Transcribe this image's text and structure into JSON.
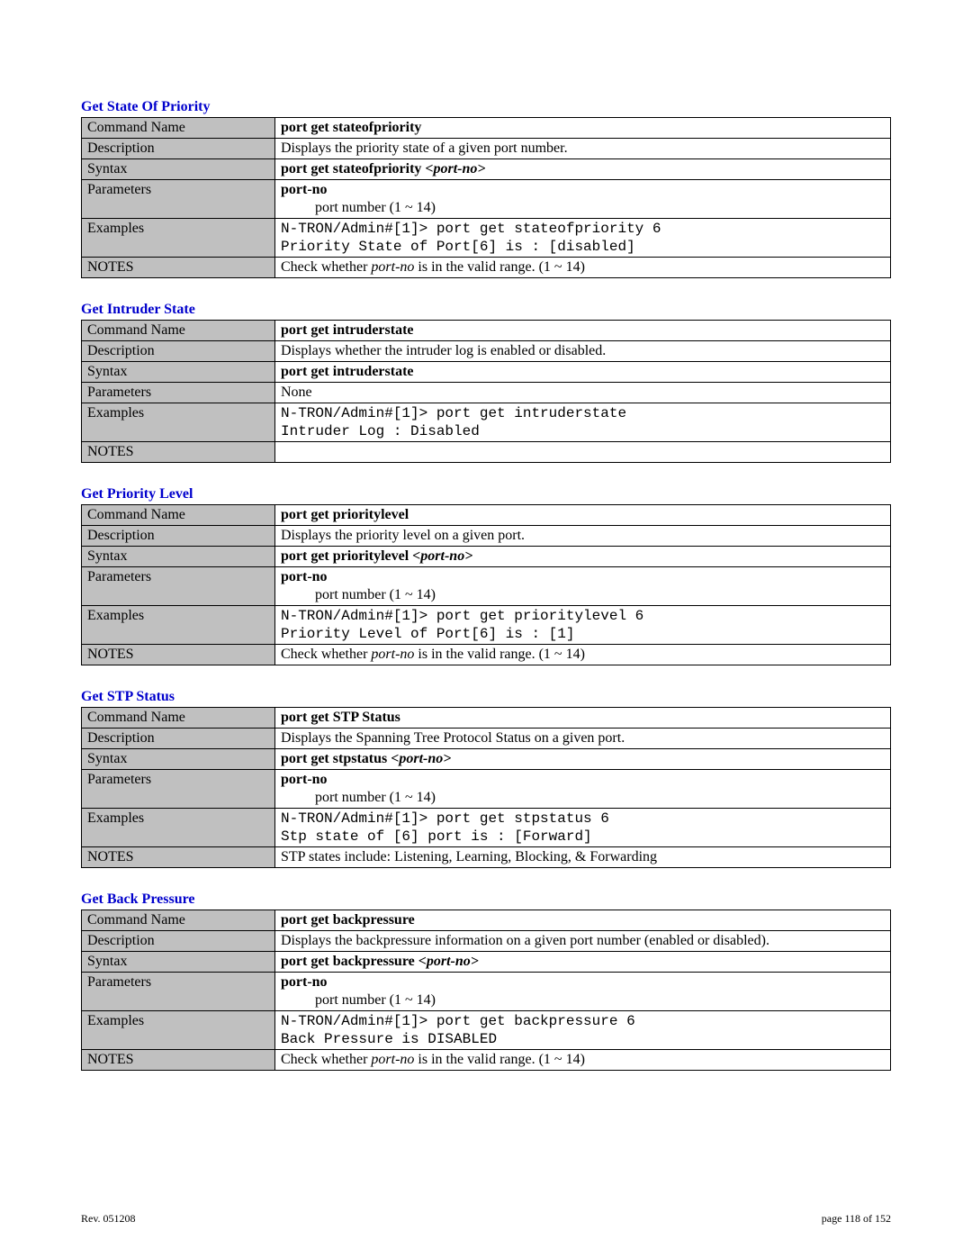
{
  "colors": {
    "heading": "#0000cc",
    "border": "#000000",
    "label_bg": "#c0c0c0",
    "text": "#000000",
    "page_bg": "#ffffff"
  },
  "labels": {
    "command_name": "Command Name",
    "description": "Description",
    "syntax": "Syntax",
    "parameters": "Parameters",
    "examples": "Examples",
    "notes": "NOTES"
  },
  "sections": [
    {
      "title": "Get State Of  Priority",
      "command_name": "port get stateofpriority",
      "description": "Displays the priority state of a given port number.",
      "syntax_prefix": "port get stateofpriority ",
      "syntax_arg": "<port-no>",
      "param_name": "port-no",
      "param_desc": "port number (1 ~ 14)",
      "example_line1": "N-TRON/Admin#[1]> port get stateofpriority 6",
      "example_line2": "Priority State of Port[6] is : [disabled]",
      "notes_pre": "Check whether ",
      "notes_em": "port-no",
      "notes_post": " is in the valid range. (1 ~ 14)"
    },
    {
      "title": "Get Intruder State",
      "command_name": "port get intruderstate",
      "description": "Displays whether the intruder log is enabled or disabled.",
      "syntax_prefix": "port get intruderstate",
      "syntax_arg": "",
      "param_name": "",
      "param_none": "None",
      "param_desc": "",
      "example_line1": "N-TRON/Admin#[1]> port get intruderstate",
      "example_line2": "Intruder Log : Disabled",
      "notes_pre": "",
      "notes_em": "",
      "notes_post": ""
    },
    {
      "title": "Get Priority Level",
      "command_name": "port get prioritylevel",
      "description": "Displays the priority level on a given port.",
      "syntax_prefix": "port get prioritylevel ",
      "syntax_arg": "<port-no>",
      "param_name": "port-no",
      "param_desc": "port number (1 ~ 14)",
      "example_line1": "N-TRON/Admin#[1]> port get prioritylevel 6",
      "example_line2": "Priority Level of Port[6] is : [1]",
      "notes_pre": "Check whether ",
      "notes_em": "port-no",
      "notes_post": " is in the valid range. (1 ~ 14)"
    },
    {
      "title": "Get STP Status",
      "command_name": "port get STP Status",
      "description": "Displays the Spanning Tree Protocol Status on a given port.",
      "syntax_prefix": "port get stpstatus ",
      "syntax_arg": "<port-no>",
      "param_name": "port-no",
      "param_desc": "port number (1 ~ 14)",
      "example_line1": "N-TRON/Admin#[1]> port get stpstatus 6",
      "example_line2": "Stp state of [6] port is : [Forward]",
      "notes_plain": "STP states include: Listening, Learning, Blocking, & Forwarding"
    },
    {
      "title": "Get Back Pressure",
      "command_name": "port get backpressure",
      "description": "Displays the backpressure information on a given port number (enabled or disabled).",
      "syntax_prefix": "port get backpressure ",
      "syntax_arg": "<port-no>",
      "param_name": "port-no",
      "param_desc": "port number (1 ~ 14)",
      "example_line1": "N-TRON/Admin#[1]> port get backpressure 6",
      "example_line2": "Back Pressure is DISABLED",
      "notes_pre": "Check whether ",
      "notes_em": "port-no",
      "notes_post": " is in the valid range. (1 ~ 14)"
    }
  ],
  "footer": {
    "left": "Rev.  051208",
    "right": "page 118 of 152"
  }
}
